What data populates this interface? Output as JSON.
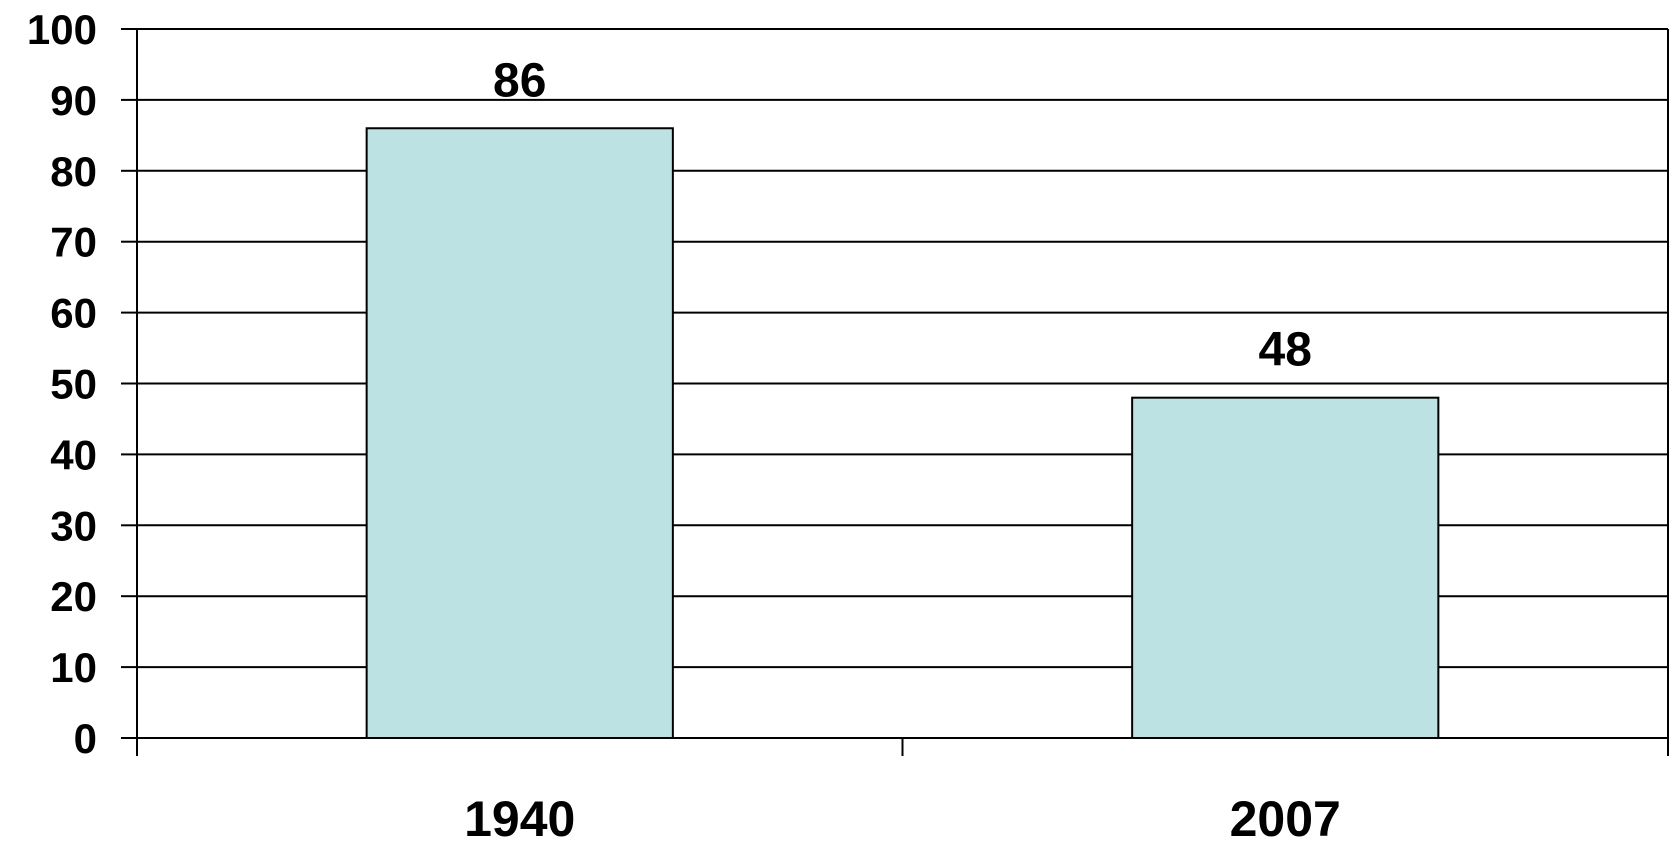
{
  "chart_data": {
    "type": "bar",
    "categories": [
      "1940",
      "2007"
    ],
    "values": [
      86,
      48
    ],
    "title": "",
    "xlabel": "",
    "ylabel": "",
    "ylim": [
      0,
      100
    ],
    "yticks": [
      "0",
      "10",
      "20",
      "30",
      "40",
      "50",
      "60",
      "70",
      "80",
      "90",
      "100"
    ],
    "data_labels": [
      "86",
      "48"
    ],
    "grid": true,
    "legend": "none",
    "colors": {
      "bar_fill": "#bce2e4",
      "bar_stroke": "#000000",
      "grid": "#000000",
      "background": "#ffffff"
    }
  }
}
